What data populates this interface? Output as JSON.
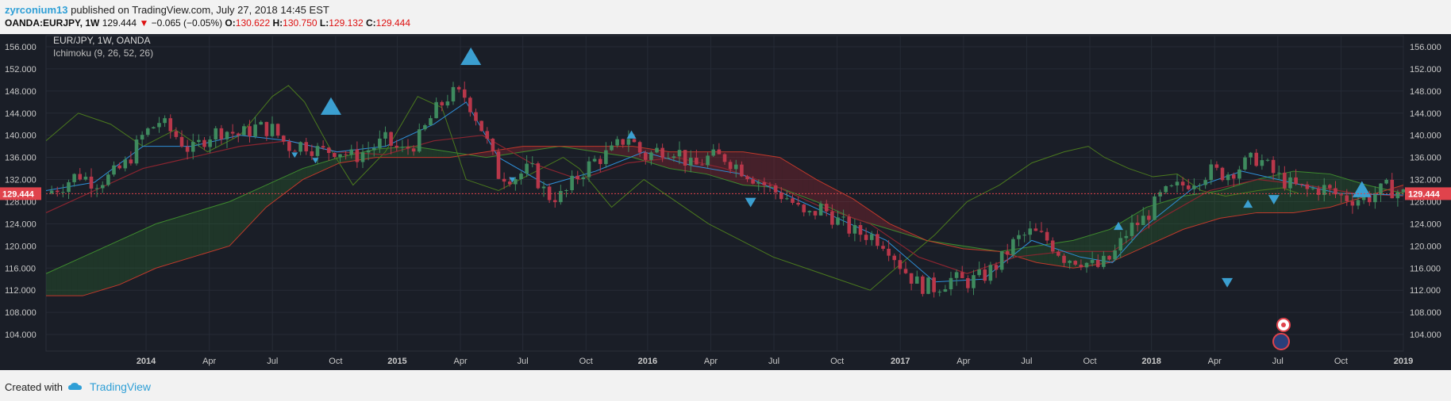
{
  "header": {
    "user": "zyrconium13",
    "published": "published on TradingView.com, July 27, 2018 14:45 EST",
    "symbol": "OANDA:EURJPY, 1W",
    "last": "129.444",
    "change": "−0.065 (−0.05%)",
    "o_label": "O:",
    "o": "130.622",
    "h_label": "H:",
    "h": "130.750",
    "l_label": "L:",
    "l": "129.132",
    "c_label": "C:",
    "c": "129.444"
  },
  "legend": {
    "title": "EUR/JPY, 1W, OANDA",
    "indicator": "Ichimoku (9, 26, 52, 26)"
  },
  "footer": {
    "created": "Created with",
    "brand": "TradingView"
  },
  "colors": {
    "background": "#1a1e27",
    "up": "#3e8a5e",
    "down": "#b8374a",
    "tenkan": "#2f8fd8",
    "kijun": "#8a2530",
    "chikou": "#4b7a1e",
    "span_a": "#3e8a2e",
    "span_b": "#c0392b",
    "marker": "#3b9fd0",
    "price_line": "#e0434c"
  },
  "chart_data": {
    "type": "candlestick",
    "y_ticks": [
      "156.000",
      "152.000",
      "148.000",
      "144.000",
      "140.000",
      "136.000",
      "132.000",
      "128.000",
      "124.000",
      "120.000",
      "116.000",
      "112.000",
      "108.000",
      "104.000"
    ],
    "ylim": [
      101,
      158
    ],
    "x_ticks": [
      "2014",
      "Apr",
      "Jul",
      "Oct",
      "2015",
      "Apr",
      "Jul",
      "Oct",
      "2016",
      "Apr",
      "Jul",
      "Oct",
      "2017",
      "Apr",
      "Jul",
      "Oct",
      "2018",
      "Apr",
      "Jul",
      "Oct",
      "2019"
    ],
    "xlim_weeks": [
      0,
      262
    ],
    "last_price_label": "129.444",
    "last_price": 129.444,
    "price_path": [
      [
        0,
        129.5
      ],
      [
        4,
        131
      ],
      [
        8,
        133
      ],
      [
        12,
        131.5
      ],
      [
        16,
        132.5
      ],
      [
        20,
        135
      ],
      [
        24,
        140
      ],
      [
        28,
        142.5
      ],
      [
        32,
        140
      ],
      [
        36,
        137
      ],
      [
        40,
        140
      ],
      [
        44,
        141
      ],
      [
        48,
        140
      ],
      [
        52,
        141.5
      ],
      [
        56,
        141
      ],
      [
        60,
        138
      ],
      [
        64,
        138.5
      ],
      [
        68,
        137
      ],
      [
        72,
        137.5
      ],
      [
        76,
        136
      ],
      [
        80,
        137.5
      ],
      [
        84,
        139
      ],
      [
        88,
        137
      ],
      [
        92,
        139
      ],
      [
        96,
        144
      ],
      [
        100,
        147.5
      ],
      [
        104,
        147
      ],
      [
        108,
        141
      ],
      [
        112,
        133
      ],
      [
        116,
        132.5
      ],
      [
        120,
        134
      ],
      [
        124,
        129
      ],
      [
        128,
        129
      ],
      [
        132,
        133
      ],
      [
        136,
        135.5
      ],
      [
        140,
        137
      ],
      [
        144,
        140
      ],
      [
        148,
        136
      ],
      [
        152,
        137.5
      ],
      [
        156,
        137.5
      ],
      [
        160,
        134
      ],
      [
        164,
        136
      ],
      [
        168,
        136
      ],
      [
        172,
        134
      ],
      [
        176,
        132
      ],
      [
        180,
        130
      ],
      [
        184,
        128.5
      ],
      [
        188,
        125
      ],
      [
        192,
        127
      ],
      [
        196,
        124.5
      ],
      [
        200,
        122.5
      ],
      [
        204,
        122
      ],
      [
        208,
        120.5
      ],
      [
        212,
        116
      ],
      [
        216,
        113
      ],
      [
        220,
        112.5
      ],
      [
        224,
        114
      ],
      [
        228,
        113.5
      ],
      [
        232,
        114.5
      ],
      [
        236,
        117
      ],
      [
        240,
        121
      ],
      [
        244,
        122.5
      ],
      [
        248,
        121
      ],
      [
        252,
        118
      ],
      [
        256,
        117.5
      ],
      [
        260,
        116
      ],
      [
        264,
        118
      ],
      [
        268,
        123
      ],
      [
        272,
        125
      ],
      [
        276,
        129
      ],
      [
        280,
        130.5
      ],
      [
        284,
        132
      ],
      [
        288,
        133.5
      ],
      [
        292,
        133
      ],
      [
        296,
        134.5
      ],
      [
        300,
        136
      ],
      [
        304,
        133
      ],
      [
        308,
        131
      ],
      [
        312,
        130
      ],
      [
        316,
        130.5
      ],
      [
        320,
        129
      ],
      [
        324,
        128.5
      ],
      [
        328,
        129
      ],
      [
        332,
        130.5
      ],
      [
        336,
        129.4
      ]
    ],
    "tenkan_path": [
      [
        0,
        130
      ],
      [
        12,
        131.5
      ],
      [
        24,
        138
      ],
      [
        36,
        138
      ],
      [
        48,
        140
      ],
      [
        60,
        139
      ],
      [
        72,
        137
      ],
      [
        84,
        138
      ],
      [
        96,
        142
      ],
      [
        104,
        146
      ],
      [
        112,
        136
      ],
      [
        124,
        131
      ],
      [
        136,
        133.5
      ],
      [
        148,
        137
      ],
      [
        160,
        134.5
      ],
      [
        172,
        133
      ],
      [
        184,
        129
      ],
      [
        196,
        125
      ],
      [
        208,
        121
      ],
      [
        220,
        113.5
      ],
      [
        232,
        114
      ],
      [
        244,
        121
      ],
      [
        256,
        118
      ],
      [
        264,
        117
      ],
      [
        272,
        123.5
      ],
      [
        284,
        130.5
      ],
      [
        296,
        133.5
      ],
      [
        308,
        131.5
      ],
      [
        320,
        129.5
      ],
      [
        336,
        129.2
      ]
    ],
    "kijun_path": [
      [
        0,
        126
      ],
      [
        12,
        130
      ],
      [
        24,
        134
      ],
      [
        36,
        136
      ],
      [
        48,
        138
      ],
      [
        60,
        139
      ],
      [
        72,
        137
      ],
      [
        84,
        136.5
      ],
      [
        96,
        139
      ],
      [
        108,
        140
      ],
      [
        120,
        135
      ],
      [
        132,
        132
      ],
      [
        144,
        135
      ],
      [
        156,
        136
      ],
      [
        168,
        134
      ],
      [
        180,
        131
      ],
      [
        192,
        127
      ],
      [
        204,
        124
      ],
      [
        216,
        118
      ],
      [
        228,
        115
      ],
      [
        240,
        118
      ],
      [
        252,
        119
      ],
      [
        264,
        119
      ],
      [
        276,
        125
      ],
      [
        288,
        130
      ],
      [
        300,
        132
      ],
      [
        312,
        131
      ],
      [
        324,
        129.5
      ],
      [
        336,
        129
      ]
    ],
    "chikou_path": [
      [
        0,
        139
      ],
      [
        8,
        144
      ],
      [
        16,
        142
      ],
      [
        24,
        138
      ],
      [
        32,
        141
      ],
      [
        40,
        137
      ],
      [
        48,
        140
      ],
      [
        56,
        147
      ],
      [
        60,
        149
      ],
      [
        64,
        146
      ],
      [
        70,
        138
      ],
      [
        76,
        131
      ],
      [
        84,
        137
      ],
      [
        92,
        147
      ],
      [
        98,
        145
      ],
      [
        104,
        132
      ],
      [
        112,
        130
      ],
      [
        120,
        133
      ],
      [
        128,
        136
      ],
      [
        132,
        134
      ],
      [
        140,
        127
      ],
      [
        148,
        132
      ],
      [
        156,
        128
      ],
      [
        164,
        124
      ],
      [
        172,
        121
      ],
      [
        180,
        118
      ],
      [
        188,
        116
      ],
      [
        196,
        114
      ],
      [
        204,
        112
      ],
      [
        212,
        117
      ],
      [
        220,
        122
      ],
      [
        228,
        128
      ],
      [
        236,
        131
      ],
      [
        244,
        135
      ],
      [
        252,
        137
      ],
      [
        258,
        138
      ],
      [
        262,
        136
      ],
      [
        268,
        134
      ],
      [
        274,
        132.5
      ],
      [
        280,
        133
      ],
      [
        286,
        130
      ],
      [
        292,
        129
      ],
      [
        300,
        130
      ],
      [
        306,
        130.5
      ],
      [
        310,
        129.5
      ]
    ],
    "span_a_path": [
      [
        0,
        115
      ],
      [
        10,
        118
      ],
      [
        20,
        121
      ],
      [
        30,
        124
      ],
      [
        40,
        126
      ],
      [
        50,
        128
      ],
      [
        60,
        131
      ],
      [
        70,
        134
      ],
      [
        80,
        136
      ],
      [
        90,
        137.5
      ],
      [
        100,
        138
      ],
      [
        110,
        137
      ],
      [
        120,
        136
      ],
      [
        130,
        137
      ],
      [
        140,
        138
      ],
      [
        150,
        137
      ],
      [
        160,
        136
      ],
      [
        170,
        134
      ],
      [
        180,
        133
      ],
      [
        190,
        131
      ],
      [
        200,
        130.5
      ],
      [
        210,
        128
      ],
      [
        220,
        125
      ],
      [
        230,
        123
      ],
      [
        240,
        121
      ],
      [
        250,
        120
      ],
      [
        260,
        119
      ],
      [
        270,
        120
      ],
      [
        280,
        121
      ],
      [
        290,
        123
      ],
      [
        300,
        127
      ],
      [
        310,
        129
      ],
      [
        320,
        130
      ],
      [
        330,
        132
      ],
      [
        340,
        133.5
      ],
      [
        350,
        133
      ],
      [
        360,
        131
      ],
      [
        370,
        129.5
      ]
    ],
    "span_b_path": [
      [
        0,
        111
      ],
      [
        10,
        111
      ],
      [
        20,
        113
      ],
      [
        30,
        116
      ],
      [
        40,
        118
      ],
      [
        50,
        120
      ],
      [
        60,
        127
      ],
      [
        70,
        132
      ],
      [
        80,
        135
      ],
      [
        90,
        136
      ],
      [
        100,
        136
      ],
      [
        110,
        136
      ],
      [
        120,
        137
      ],
      [
        130,
        138
      ],
      [
        140,
        138
      ],
      [
        150,
        138
      ],
      [
        160,
        138
      ],
      [
        170,
        137
      ],
      [
        180,
        137
      ],
      [
        190,
        137
      ],
      [
        200,
        136
      ],
      [
        210,
        132
      ],
      [
        220,
        128.5
      ],
      [
        230,
        124
      ],
      [
        240,
        121
      ],
      [
        250,
        119.5
      ],
      [
        260,
        119
      ],
      [
        270,
        117
      ],
      [
        280,
        116
      ],
      [
        290,
        117
      ],
      [
        300,
        120
      ],
      [
        310,
        123
      ],
      [
        320,
        125
      ],
      [
        330,
        126
      ],
      [
        340,
        126
      ],
      [
        350,
        127
      ],
      [
        360,
        129
      ],
      [
        370,
        131
      ]
    ],
    "signals_up": [
      [
        55,
        145
      ],
      [
        82,
        154
      ],
      [
        232,
        127.5
      ],
      [
        254,
        130
      ],
      [
        207,
        123.5
      ],
      [
        113,
        140
      ]
    ],
    "signals_down": [
      [
        48,
        136.5
      ],
      [
        52,
        135.5
      ],
      [
        90,
        132
      ],
      [
        136,
        128
      ],
      [
        228,
        113.5
      ],
      [
        237,
        128.5
      ]
    ]
  }
}
